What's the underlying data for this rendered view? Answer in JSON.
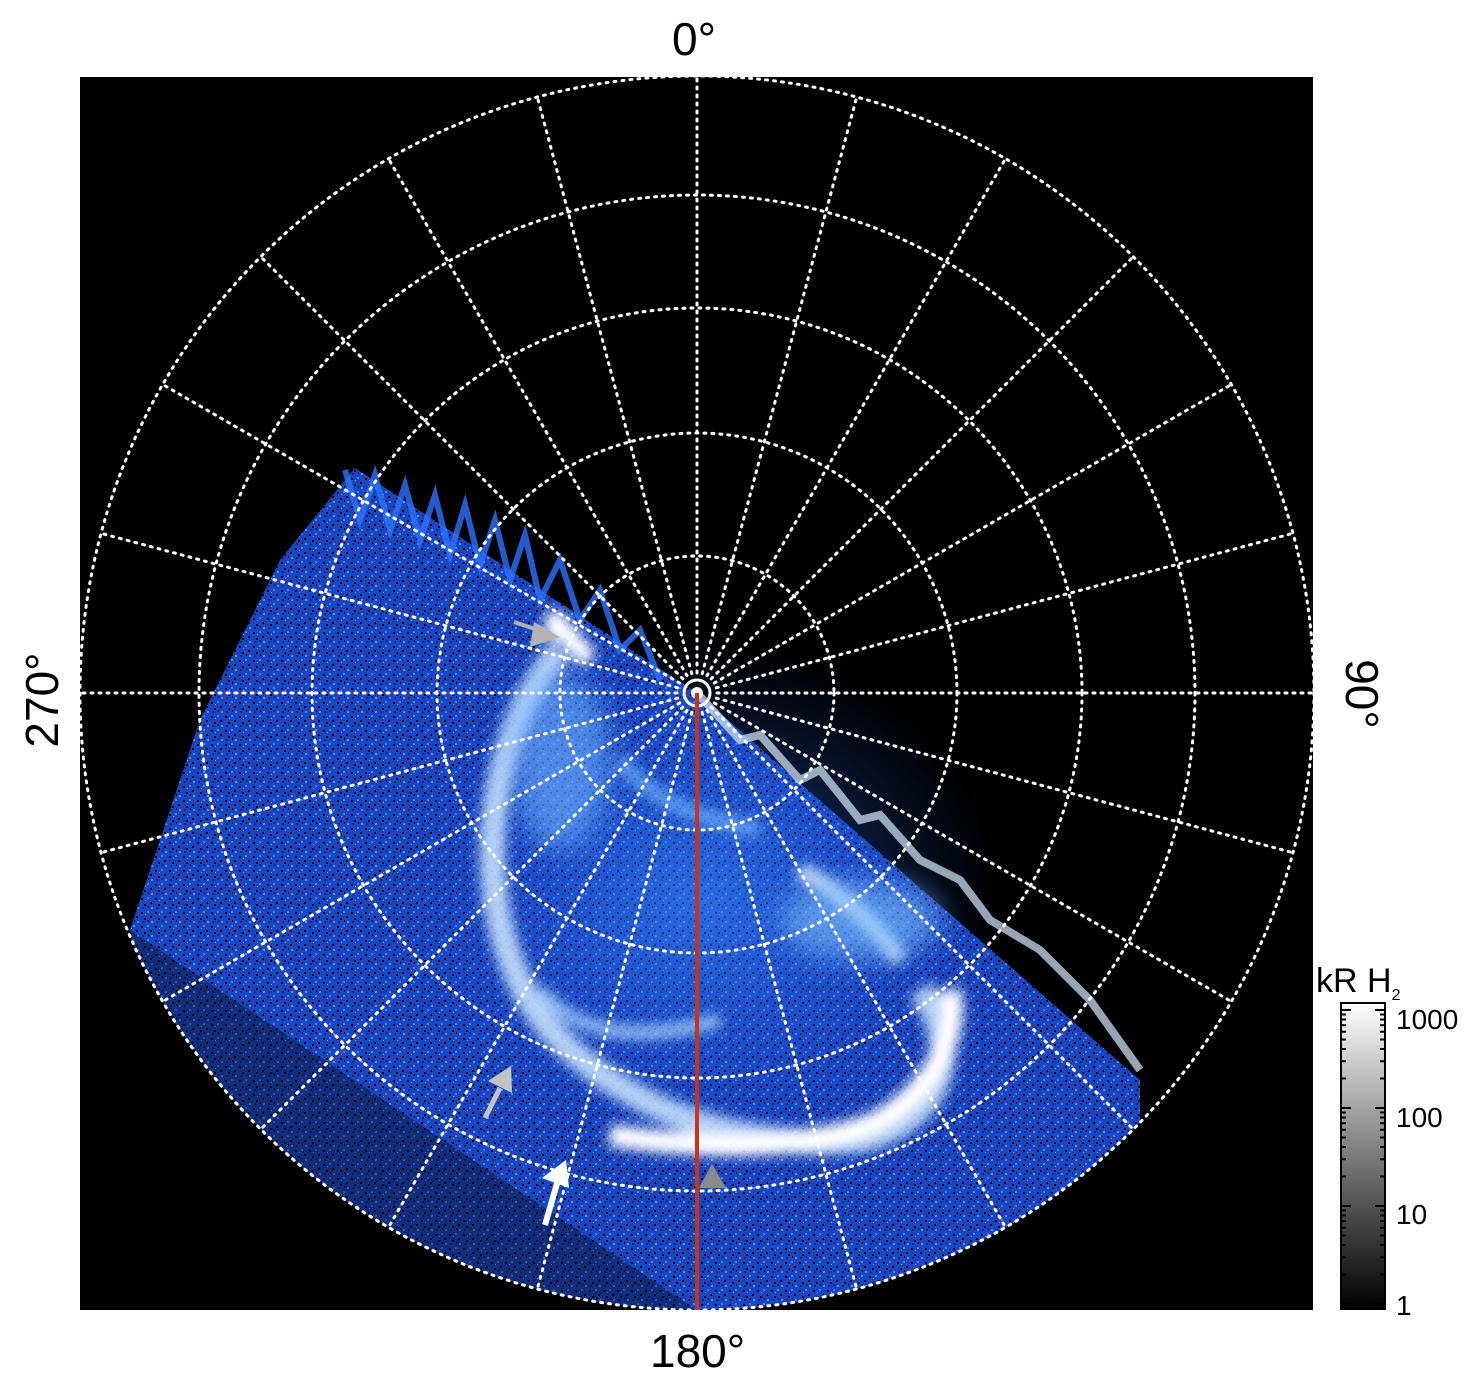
{
  "labels": {
    "top": "0°",
    "bottom": "180°",
    "left": "270°",
    "right": "90°"
  },
  "colorbar": {
    "title": "kR H",
    "title_sub": "2",
    "ticks": [
      "1000",
      "100",
      "10",
      "1"
    ],
    "tick_values": [
      1000,
      100,
      10,
      1
    ],
    "scale": "log"
  },
  "colors": {
    "background": "#000000",
    "aurora_dim": "#1c4fd6",
    "aurora_mid": "#2f8bff",
    "aurora_bright": "#eaf5ff",
    "grid": "#ffffff",
    "meridian_line": "#c8341a",
    "arrow_gray": "#b3b3b3",
    "arrow_white": "#ffffff",
    "triangle_gray": "#8a8a8a"
  },
  "grid": {
    "style": "dotted",
    "meridian_spacing_deg": 15,
    "parallel_count": 5
  }
}
